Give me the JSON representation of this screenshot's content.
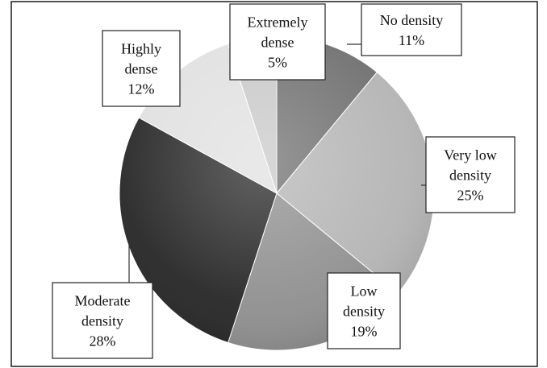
{
  "chart_data": {
    "type": "pie",
    "title": "",
    "start_angle_deg": 0,
    "direction": "clockwise",
    "slices": [
      {
        "label_lines": [
          "No density",
          "11%"
        ],
        "value": 11,
        "color": "#6f6f6f"
      },
      {
        "label_lines": [
          "Very low",
          "density",
          "25%"
        ],
        "value": 25,
        "color": "#b4b4b4"
      },
      {
        "label_lines": [
          "Low",
          "density",
          "19%"
        ],
        "value": 19,
        "color": "#8f8f8f"
      },
      {
        "label_lines": [
          "Moderate",
          "density",
          "28%"
        ],
        "value": 28,
        "color": "#262626"
      },
      {
        "label_lines": [
          "Highly",
          "dense",
          "12%"
        ],
        "value": 12,
        "color": "#e0e0e0"
      },
      {
        "label_lines": [
          "Extremely",
          "dense",
          "5%"
        ],
        "value": 5,
        "color": "#c8c8c8"
      }
    ]
  }
}
